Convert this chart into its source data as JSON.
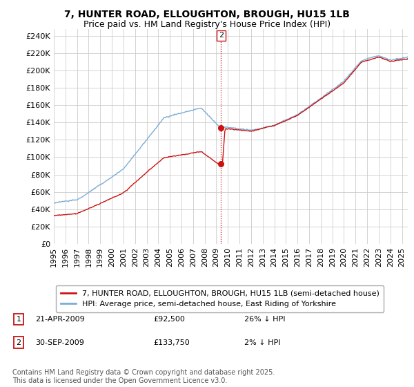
{
  "title": "7, HUNTER ROAD, ELLOUGHTON, BROUGH, HU15 1LB",
  "subtitle": "Price paid vs. HM Land Registry's House Price Index (HPI)",
  "ylabel_ticks": [
    "£0",
    "£20K",
    "£40K",
    "£60K",
    "£80K",
    "£100K",
    "£120K",
    "£140K",
    "£160K",
    "£180K",
    "£200K",
    "£220K",
    "£240K"
  ],
  "ytick_values": [
    0,
    20000,
    40000,
    60000,
    80000,
    100000,
    120000,
    140000,
    160000,
    180000,
    200000,
    220000,
    240000
  ],
  "ylim": [
    0,
    248000
  ],
  "xlim_year": [
    1995,
    2025.5
  ],
  "xticks": [
    1995,
    1996,
    1997,
    1998,
    1999,
    2000,
    2001,
    2002,
    2003,
    2004,
    2005,
    2006,
    2007,
    2008,
    2009,
    2010,
    2011,
    2012,
    2013,
    2014,
    2015,
    2016,
    2017,
    2018,
    2019,
    2020,
    2021,
    2022,
    2023,
    2024,
    2025
  ],
  "hpi_color": "#7aadd4",
  "price_color": "#cc1111",
  "annotation_color": "#cc1111",
  "dot_color": "#cc1111",
  "vertical_line_color": "#cc1111",
  "bg_color": "#ffffff",
  "grid_color": "#cccccc",
  "sale1": {
    "label": "1",
    "date": "21-APR-2009",
    "price": "£92,500",
    "hpi_diff": "26% ↓ HPI",
    "year": 2009.3,
    "price_val": 92500
  },
  "sale2": {
    "label": "2",
    "date": "30-SEP-2009",
    "price": "£133,750",
    "hpi_diff": "2% ↓ HPI",
    "year": 2009.75,
    "price_val": 133750
  },
  "legend_line1": "7, HUNTER ROAD, ELLOUGHTON, BROUGH, HU15 1LB (semi-detached house)",
  "legend_line2": "HPI: Average price, semi-detached house, East Riding of Yorkshire",
  "footnote": "Contains HM Land Registry data © Crown copyright and database right 2025.\nThis data is licensed under the Open Government Licence v3.0.",
  "title_fontsize": 10,
  "subtitle_fontsize": 9,
  "tick_fontsize": 8,
  "legend_fontsize": 8,
  "footnote_fontsize": 7,
  "annotation_box_sale": "2"
}
